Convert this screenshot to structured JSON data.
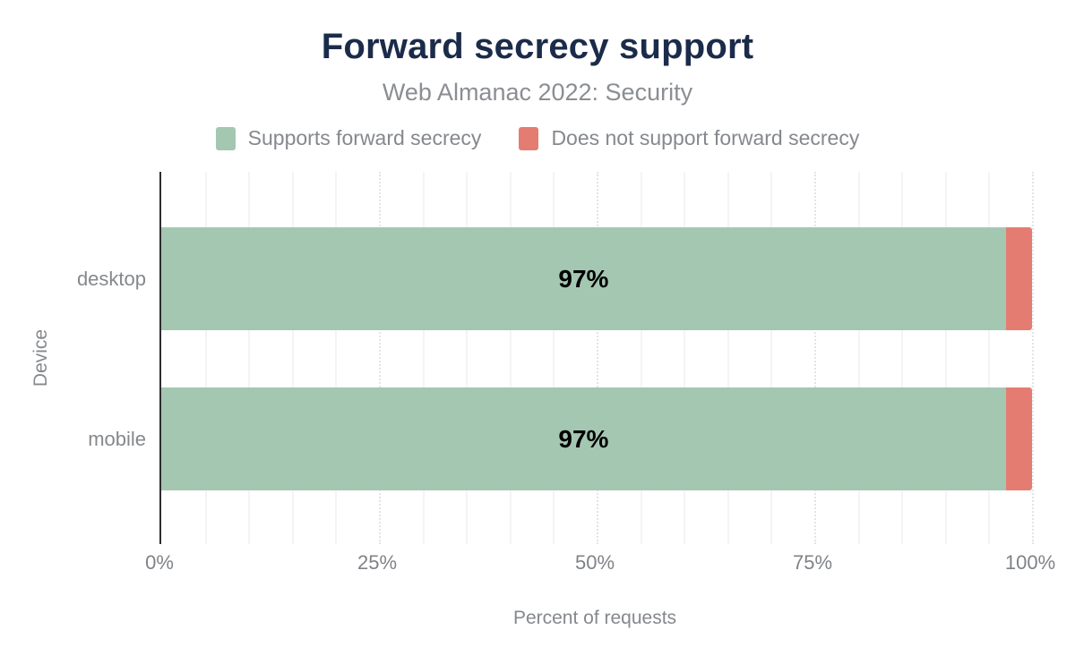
{
  "chart_data": {
    "type": "bar",
    "orientation": "horizontal",
    "stacked": true,
    "title": "Forward secrecy support",
    "subtitle": "Web Almanac 2022: Security",
    "xlabel": "Percent of requests",
    "ylabel": "Device",
    "categories": [
      "desktop",
      "mobile"
    ],
    "series": [
      {
        "name": "Supports forward secrecy",
        "color": "#a4c7b2",
        "values": [
          97,
          97
        ]
      },
      {
        "name": "Does not support forward secrecy",
        "color": "#e47c72",
        "values": [
          3,
          3
        ]
      }
    ],
    "bar_labels": [
      "97%",
      "97%"
    ],
    "xlim": [
      0,
      100
    ],
    "x_tick_values": [
      0,
      25,
      50,
      75,
      100
    ],
    "x_tick_labels": [
      "0%",
      "25%",
      "50%",
      "75%",
      "100%"
    ],
    "minor_grid_step": 5,
    "major_grid_step": 25,
    "grid": true,
    "legend_position": "top"
  },
  "colors": {
    "title_text": "#1b2b4a",
    "muted_text": "#85888d",
    "axis_line": "#2e2e2e",
    "grid_minor": "#f4f4f6",
    "grid_major": "#e2e4e8",
    "bar_value_label": "#000000"
  }
}
